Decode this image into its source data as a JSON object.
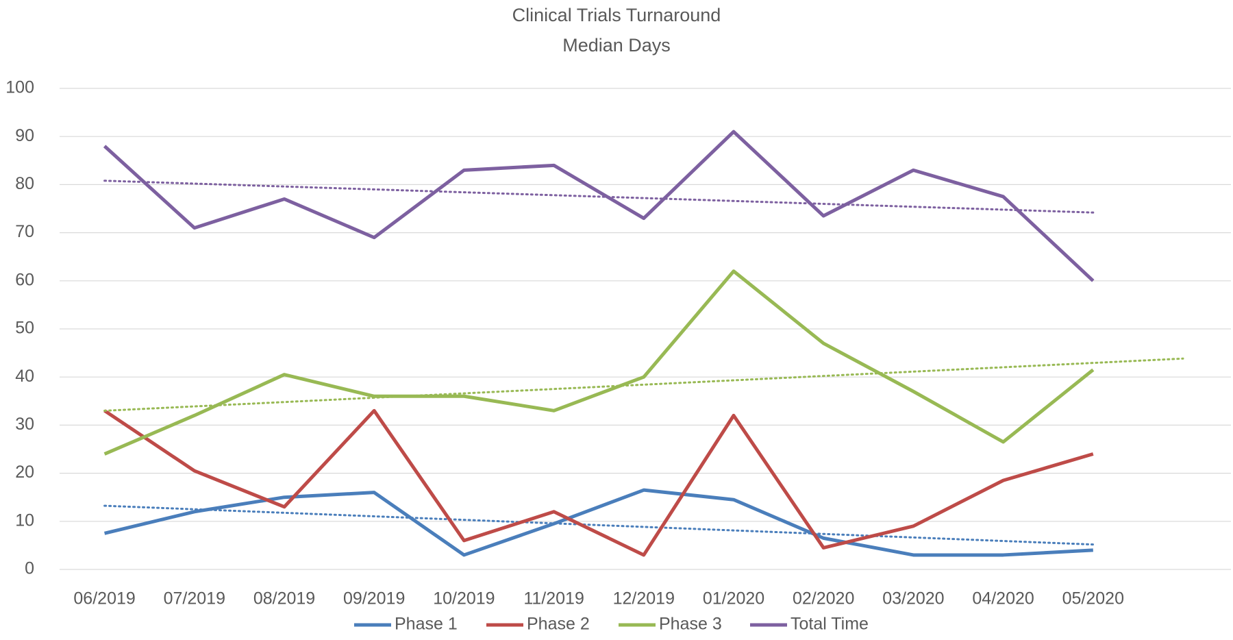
{
  "chart_data": {
    "type": "line",
    "title": "Clinical Trials Turnaround",
    "subtitle": "Median Days",
    "categories": [
      "06/2019",
      "07/2019",
      "08/2019",
      "09/2019",
      "10/2019",
      "11/2019",
      "12/2019",
      "01/2020",
      "02/2020",
      "03/2020",
      "04/2020",
      "05/2020"
    ],
    "series": [
      {
        "name": "Phase 1",
        "color": "#4a7ebb",
        "trendline": true,
        "trendline_forward": 0,
        "values": [
          7.5,
          12,
          15,
          16,
          3,
          9.5,
          16.5,
          14.5,
          6.5,
          3,
          3,
          4
        ]
      },
      {
        "name": "Phase 2",
        "color": "#be4b48",
        "trendline": false,
        "values": [
          33,
          20.5,
          13,
          33,
          6,
          12,
          3,
          32,
          4.5,
          9,
          18.5,
          24
        ]
      },
      {
        "name": "Phase 3",
        "color": "#98b954",
        "trendline": true,
        "trendline_forward": 1,
        "values": [
          24,
          32,
          40.5,
          36,
          36,
          33,
          40,
          62,
          47,
          37,
          26.5,
          41.5
        ]
      },
      {
        "name": "Total Time",
        "color": "#7d60a0",
        "trendline": true,
        "trendline_forward": 0,
        "values": [
          88,
          71,
          77,
          69,
          83,
          84,
          73,
          91,
          73.5,
          83,
          77.5,
          60
        ]
      }
    ],
    "ylim": [
      0,
      100
    ],
    "yticks": [
      0,
      10,
      20,
      30,
      40,
      50,
      60,
      70,
      80,
      90,
      100
    ],
    "grid": true,
    "legend": "bottom"
  }
}
